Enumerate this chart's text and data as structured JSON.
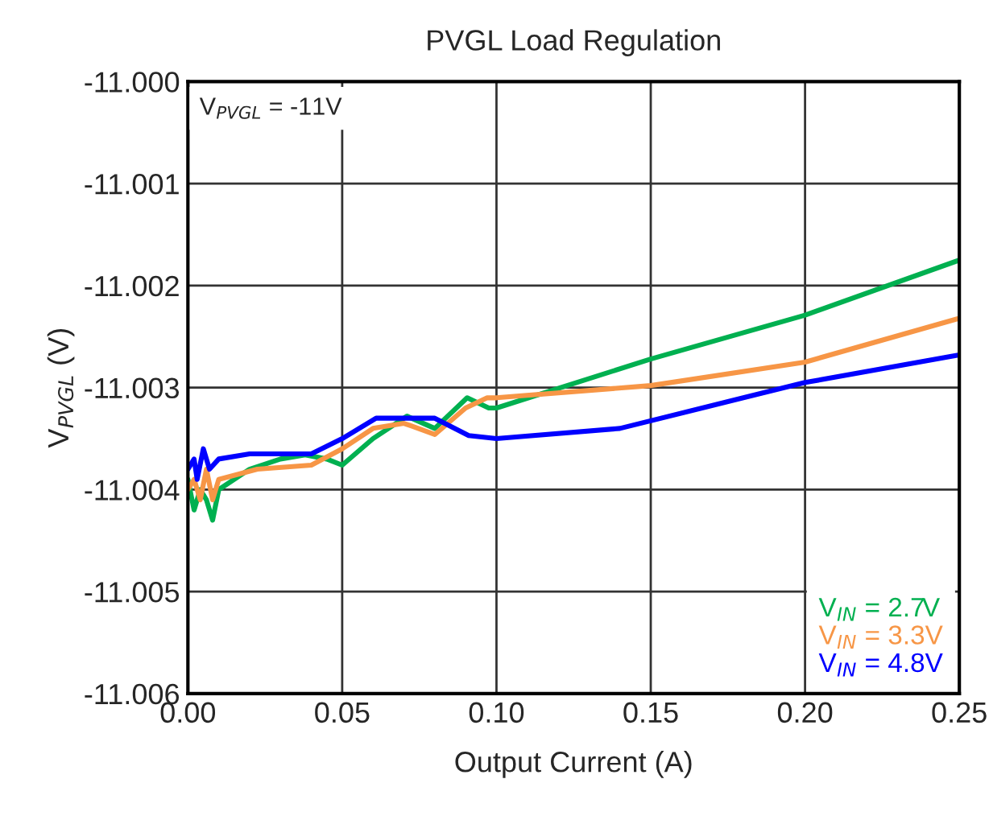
{
  "chart_data": {
    "type": "line",
    "title": "PVGL Load Regulation",
    "xlabel": "Output Current (A)",
    "ylabel": "V$_{PVGL}$ (V)",
    "annotations": [
      "V$_{PVGL}$ = -11V"
    ],
    "series": [
      {
        "name": "V$_{IN}$ = 2.7V",
        "color": "#00b050",
        "x": [
          0,
          0.002,
          0.004,
          0.006,
          0.008,
          0.01,
          0.02,
          0.03,
          0.038,
          0.045,
          0.05,
          0.06,
          0.071,
          0.08,
          0.0905,
          0.0975,
          0.1,
          0.15,
          0.2,
          0.25
        ],
        "values": [
          -11.0039,
          -11.0042,
          -11.004,
          -11.0041,
          -11.0043,
          -11.004,
          -11.0038,
          -11.0037,
          -11.00366,
          -11.0037,
          -11.00376,
          -11.0035,
          -11.00328,
          -11.0034,
          -11.0031,
          -11.0032,
          -11.0032,
          -11.00272,
          -11.00229,
          -11.00175
        ]
      },
      {
        "name": "V$_{IN}$ = 3.3V",
        "color": "#f79646",
        "x": [
          0,
          0.002,
          0.004,
          0.006,
          0.008,
          0.01,
          0.0225,
          0.04,
          0.05,
          0.06,
          0.07,
          0.08,
          0.09,
          0.097,
          0.1,
          0.15,
          0.2,
          0.25
        ],
        "values": [
          -11.004,
          -11.0039,
          -11.0041,
          -11.0038,
          -11.0041,
          -11.0039,
          -11.0038,
          -11.00376,
          -11.0036,
          -11.0034,
          -11.00335,
          -11.00346,
          -11.0032,
          -11.0031,
          -11.0031,
          -11.00298,
          -11.00275,
          -11.00232
        ]
      },
      {
        "name": "V$_{IN}$ = 4.8V",
        "color": "#0000ff",
        "x": [
          0,
          0.002,
          0.003,
          0.005,
          0.007,
          0.01,
          0.02,
          0.04,
          0.05,
          0.061,
          0.08,
          0.091,
          0.1,
          0.14,
          0.18,
          0.2,
          0.25
        ],
        "values": [
          -11.0038,
          -11.0037,
          -11.0039,
          -11.0036,
          -11.0038,
          -11.0037,
          -11.00365,
          -11.00365,
          -11.0035,
          -11.0033,
          -11.0033,
          -11.00347,
          -11.0035,
          -11.0034,
          -11.0031,
          -11.00295,
          -11.00268
        ]
      }
    ],
    "xlim": [
      0,
      0.25
    ],
    "xticks": [
      {
        "value": 0,
        "label": "0.00"
      },
      {
        "value": 0.05,
        "label": "0.05"
      },
      {
        "value": 0.1,
        "label": "0.10"
      },
      {
        "value": 0.15,
        "label": "0.15"
      },
      {
        "value": 0.2,
        "label": "0.20"
      },
      {
        "value": 0.25,
        "label": "0.25"
      }
    ],
    "ylim": [
      -11.006,
      -11.0
    ],
    "yticks": [
      {
        "value": -11.006,
        "label": "-11.006"
      },
      {
        "value": -11.005,
        "label": "-11.005"
      },
      {
        "value": -11.004,
        "label": "-11.004"
      },
      {
        "value": -11.003,
        "label": "-11.003"
      },
      {
        "value": -11.002,
        "label": "-11.002"
      },
      {
        "value": -11.001,
        "label": "-11.001"
      },
      {
        "value": -11.0,
        "label": "-11.000"
      }
    ],
    "grid": true,
    "legend": "bottom right"
  }
}
